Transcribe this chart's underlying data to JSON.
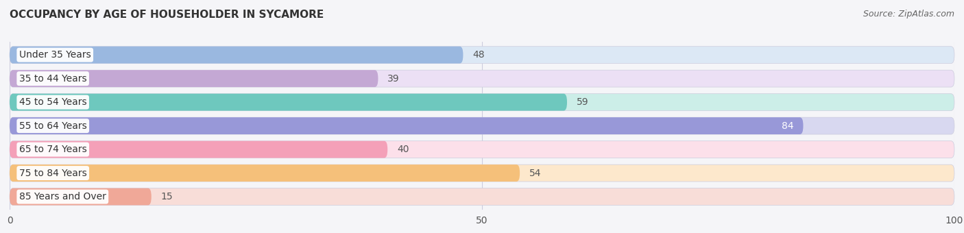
{
  "title": "OCCUPANCY BY AGE OF HOUSEHOLDER IN SYCAMORE",
  "source": "Source: ZipAtlas.com",
  "categories": [
    "Under 35 Years",
    "35 to 44 Years",
    "45 to 54 Years",
    "55 to 64 Years",
    "65 to 74 Years",
    "75 to 84 Years",
    "85 Years and Over"
  ],
  "values": [
    48,
    39,
    59,
    84,
    40,
    54,
    15
  ],
  "bar_colors": [
    "#9ab8e0",
    "#c4a8d4",
    "#6ec8be",
    "#9898d8",
    "#f4a0b8",
    "#f5c07a",
    "#f0a898"
  ],
  "bar_bg_colors": [
    "#dce8f5",
    "#ece0f5",
    "#cceee8",
    "#d8d8f0",
    "#fce0ea",
    "#fde8cc",
    "#f8ddd8"
  ],
  "xlim": [
    0,
    100
  ],
  "background_color": "#f5f5f8",
  "title_fontsize": 11,
  "source_fontsize": 9,
  "tick_fontsize": 10,
  "label_fontsize": 10,
  "bar_height": 0.72,
  "bar_gap": 0.28,
  "xticks": [
    0,
    50,
    100
  ]
}
